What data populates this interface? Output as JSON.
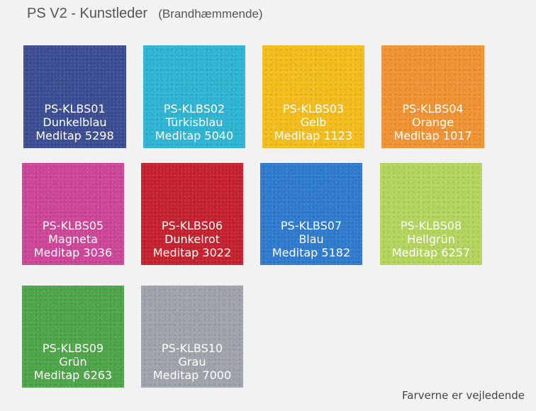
{
  "header": {
    "title": "PS V2 - Kunstleder",
    "subtitle": "(Brandhæmmende)"
  },
  "swatches": [
    {
      "code": "PS-KLBS01",
      "name": "Dunkelblau",
      "ref": "Meditap 5298",
      "color": "#3a4c92"
    },
    {
      "code": "PS-KLBS02",
      "name": "Türkisblau",
      "ref": "Meditap 5040",
      "color": "#2cb4d2"
    },
    {
      "code": "PS-KLBS03",
      "name": "Gelb",
      "ref": "Meditap 1123",
      "color": "#f2bd1a"
    },
    {
      "code": "PS-KLBS04",
      "name": "Orange",
      "ref": "Meditap 1017",
      "color": "#ef9231"
    },
    {
      "code": "PS-KLBS05",
      "name": "Magneta",
      "ref": "Meditap 3036",
      "color": "#cc4596"
    },
    {
      "code": "PS-KLBS06",
      "name": "Dunkelrot",
      "ref": "Meditap 3022",
      "color": "#c5202e"
    },
    {
      "code": "PS-KLBS07",
      "name": "Blau",
      "ref": "Meditap 5182",
      "color": "#2e7acd"
    },
    {
      "code": "PS-KLBS08",
      "name": "Hellgrün",
      "ref": "Meditap 6257",
      "color": "#b3d45c"
    },
    {
      "code": "PS-KLBS09",
      "name": "Grün",
      "ref": "Meditap 6263",
      "color": "#4da548"
    },
    {
      "code": "PS-KLBS10",
      "name": "Grau",
      "ref": "Meditap 7000",
      "color": "#9ea3aa"
    }
  ],
  "footer": {
    "note": "Farverne er vejledende"
  }
}
